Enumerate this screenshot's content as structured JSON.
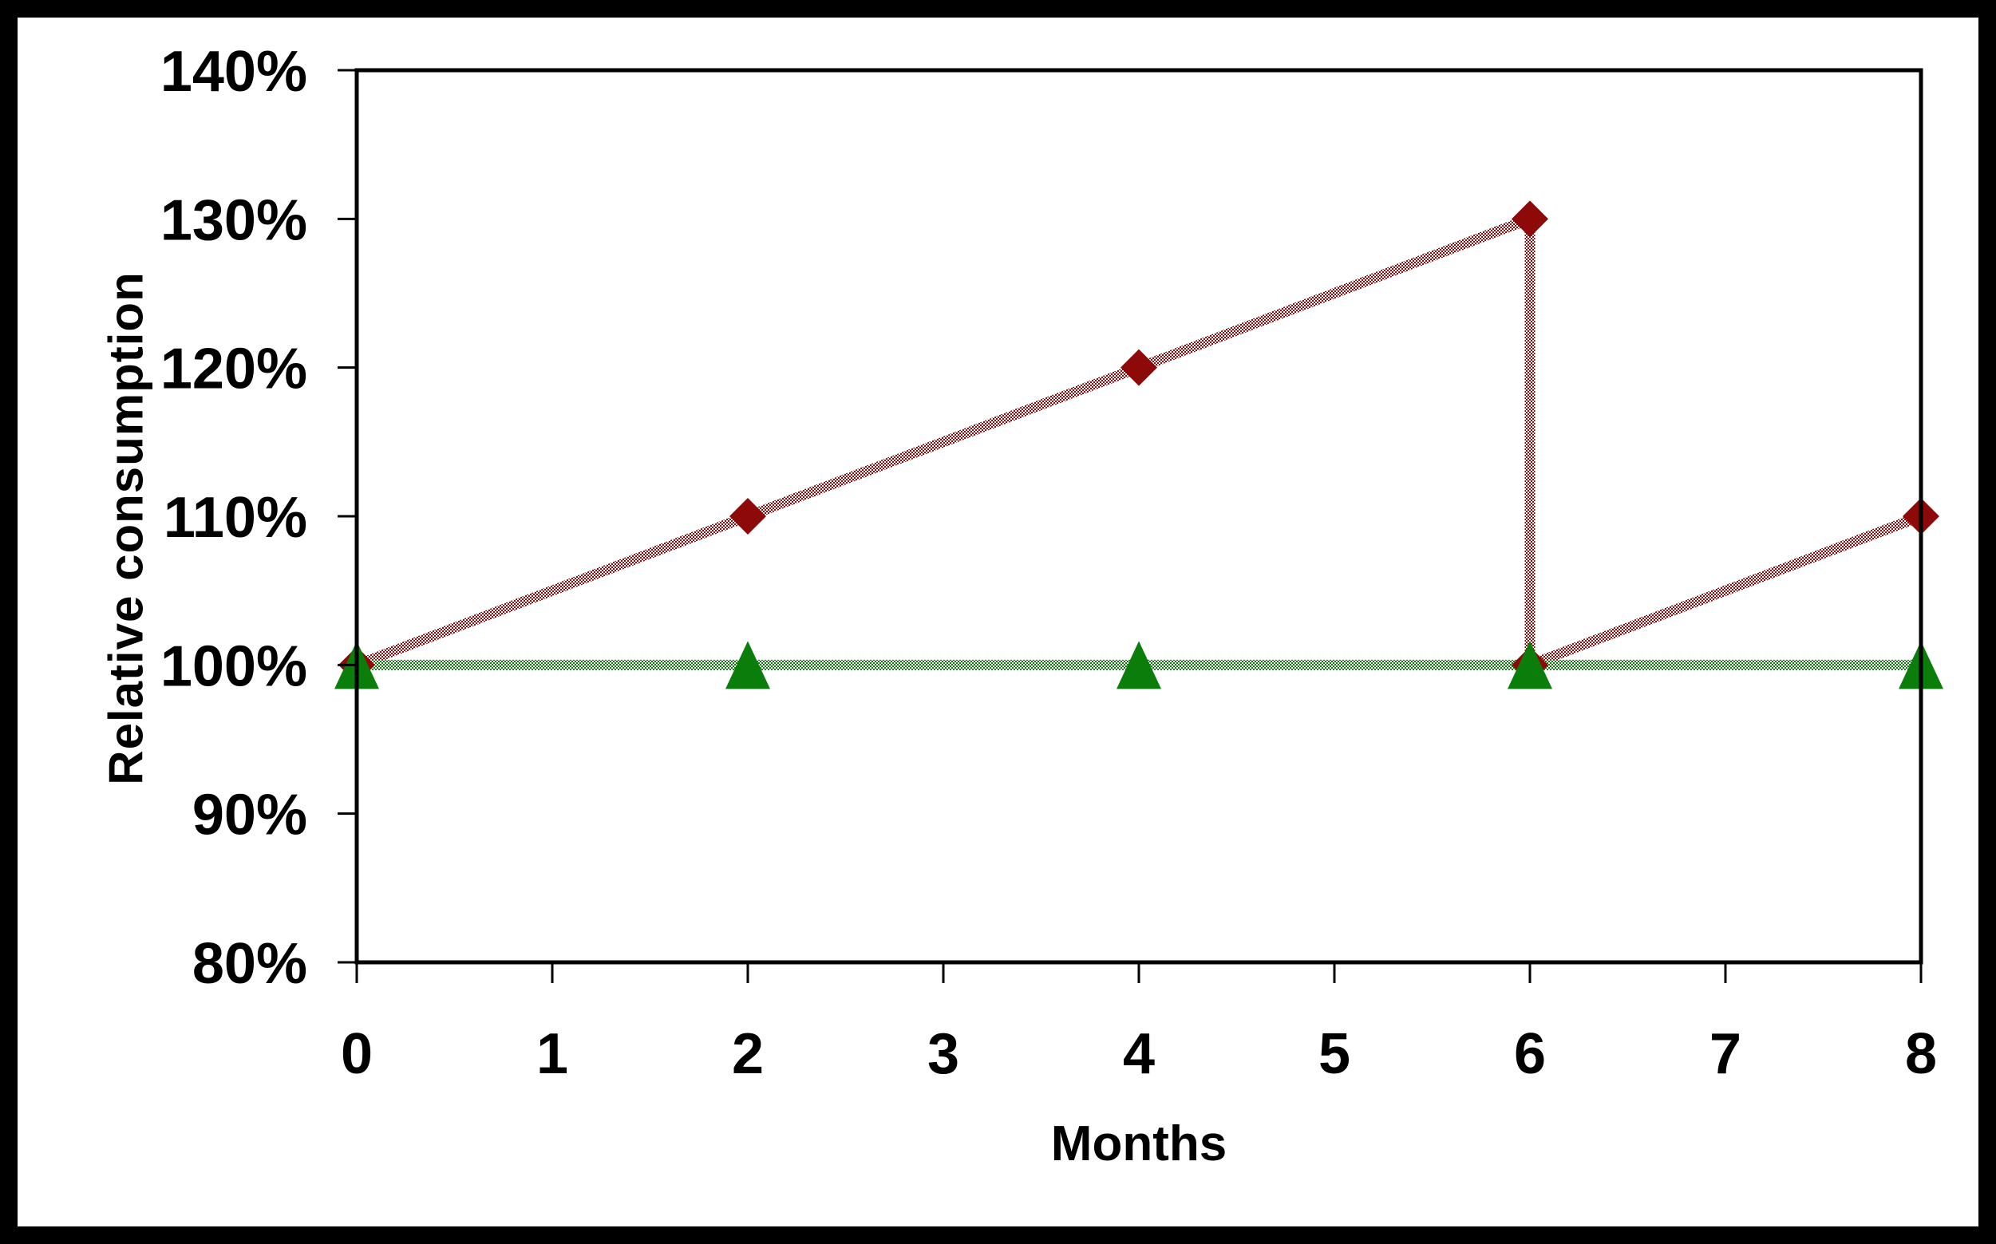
{
  "chart_data": {
    "type": "line",
    "title": "",
    "xlabel": "Months",
    "ylabel": "Relative consumption",
    "xlim": [
      0,
      8
    ],
    "ylim": [
      80,
      140
    ],
    "y_unit": "%",
    "x_ticks": [
      0,
      1,
      2,
      3,
      4,
      5,
      6,
      7,
      8
    ],
    "y_ticks": [
      {
        "value": 80,
        "label": "80%"
      },
      {
        "value": 90,
        "label": "90%"
      },
      {
        "value": 100,
        "label": "100%"
      },
      {
        "value": 110,
        "label": "110%"
      },
      {
        "value": 120,
        "label": "120%"
      },
      {
        "value": 130,
        "label": "130%"
      },
      {
        "value": 140,
        "label": "140%"
      }
    ],
    "grid": false,
    "legend": false,
    "plot_frame_color": "#000000",
    "background_color": "#ffffff",
    "outer_border_color": "#000000",
    "series": [
      {
        "name": "red-diamond-series",
        "marker": "diamond",
        "color": "#8E0909",
        "line_style": "dithered",
        "points": [
          [
            0,
            100
          ],
          [
            2,
            110
          ],
          [
            4,
            120
          ],
          [
            6,
            130
          ],
          [
            6,
            100
          ],
          [
            8,
            110
          ]
        ]
      },
      {
        "name": "green-triangle-series",
        "marker": "triangle",
        "color": "#0A7D0A",
        "line_style": "dithered",
        "points": [
          [
            0,
            100
          ],
          [
            2,
            100
          ],
          [
            4,
            100
          ],
          [
            6,
            100
          ],
          [
            8,
            100
          ]
        ]
      }
    ]
  }
}
